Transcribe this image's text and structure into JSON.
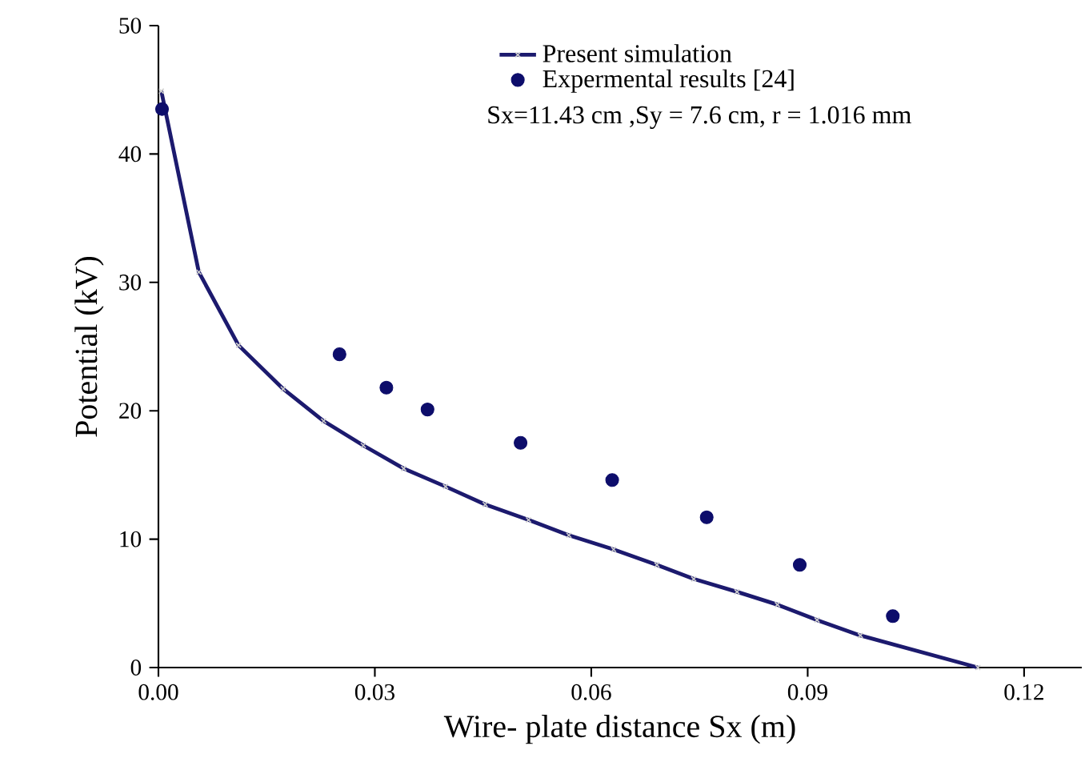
{
  "chart_data": {
    "type": "line",
    "xlabel": "Wire- plate distance Sx (m)",
    "ylabel": "Potential (kV)",
    "xlim": [
      0,
      0.128
    ],
    "ylim": [
      0,
      50
    ],
    "xticks": [
      {
        "value": 0,
        "label": "0.00"
      },
      {
        "value": 0.03,
        "label": "0.03"
      },
      {
        "value": 0.06,
        "label": "0.06"
      },
      {
        "value": 0.09,
        "label": "0.09"
      },
      {
        "value": 0.12,
        "label": "0.12"
      }
    ],
    "yticks": [
      0,
      10,
      20,
      30,
      40,
      50
    ],
    "legend": "top right",
    "annotations": [
      "Sx=11.43 cm ,Sy = 7.6 cm, r = 1.016 mm"
    ],
    "series": [
      {
        "name": "Present simulation",
        "color": "#1c1a6e",
        "marker": "cross",
        "x": [
          0.0004,
          0.0056,
          0.0111,
          0.0173,
          0.0229,
          0.0284,
          0.034,
          0.0398,
          0.0453,
          0.0513,
          0.0569,
          0.0631,
          0.0691,
          0.0742,
          0.0802,
          0.0858,
          0.0913,
          0.0973,
          0.1136
        ],
        "values": [
          44.9,
          30.8,
          25.1,
          21.7,
          19.2,
          17.3,
          15.5,
          14.1,
          12.7,
          11.5,
          10.3,
          9.2,
          8.0,
          6.9,
          5.9,
          4.9,
          3.7,
          2.5,
          0
        ]
      },
      {
        "name": "Expermental results [24]",
        "type": "scatter",
        "color": "#0d0d6b",
        "marker": "circle",
        "x": [
          0.0005,
          0.0251,
          0.0316,
          0.0373,
          0.0502,
          0.0629,
          0.076,
          0.0889,
          0.1018
        ],
        "values": [
          43.5,
          24.4,
          21.8,
          20.1,
          17.5,
          14.6,
          11.7,
          8.0,
          4.0
        ]
      }
    ]
  }
}
